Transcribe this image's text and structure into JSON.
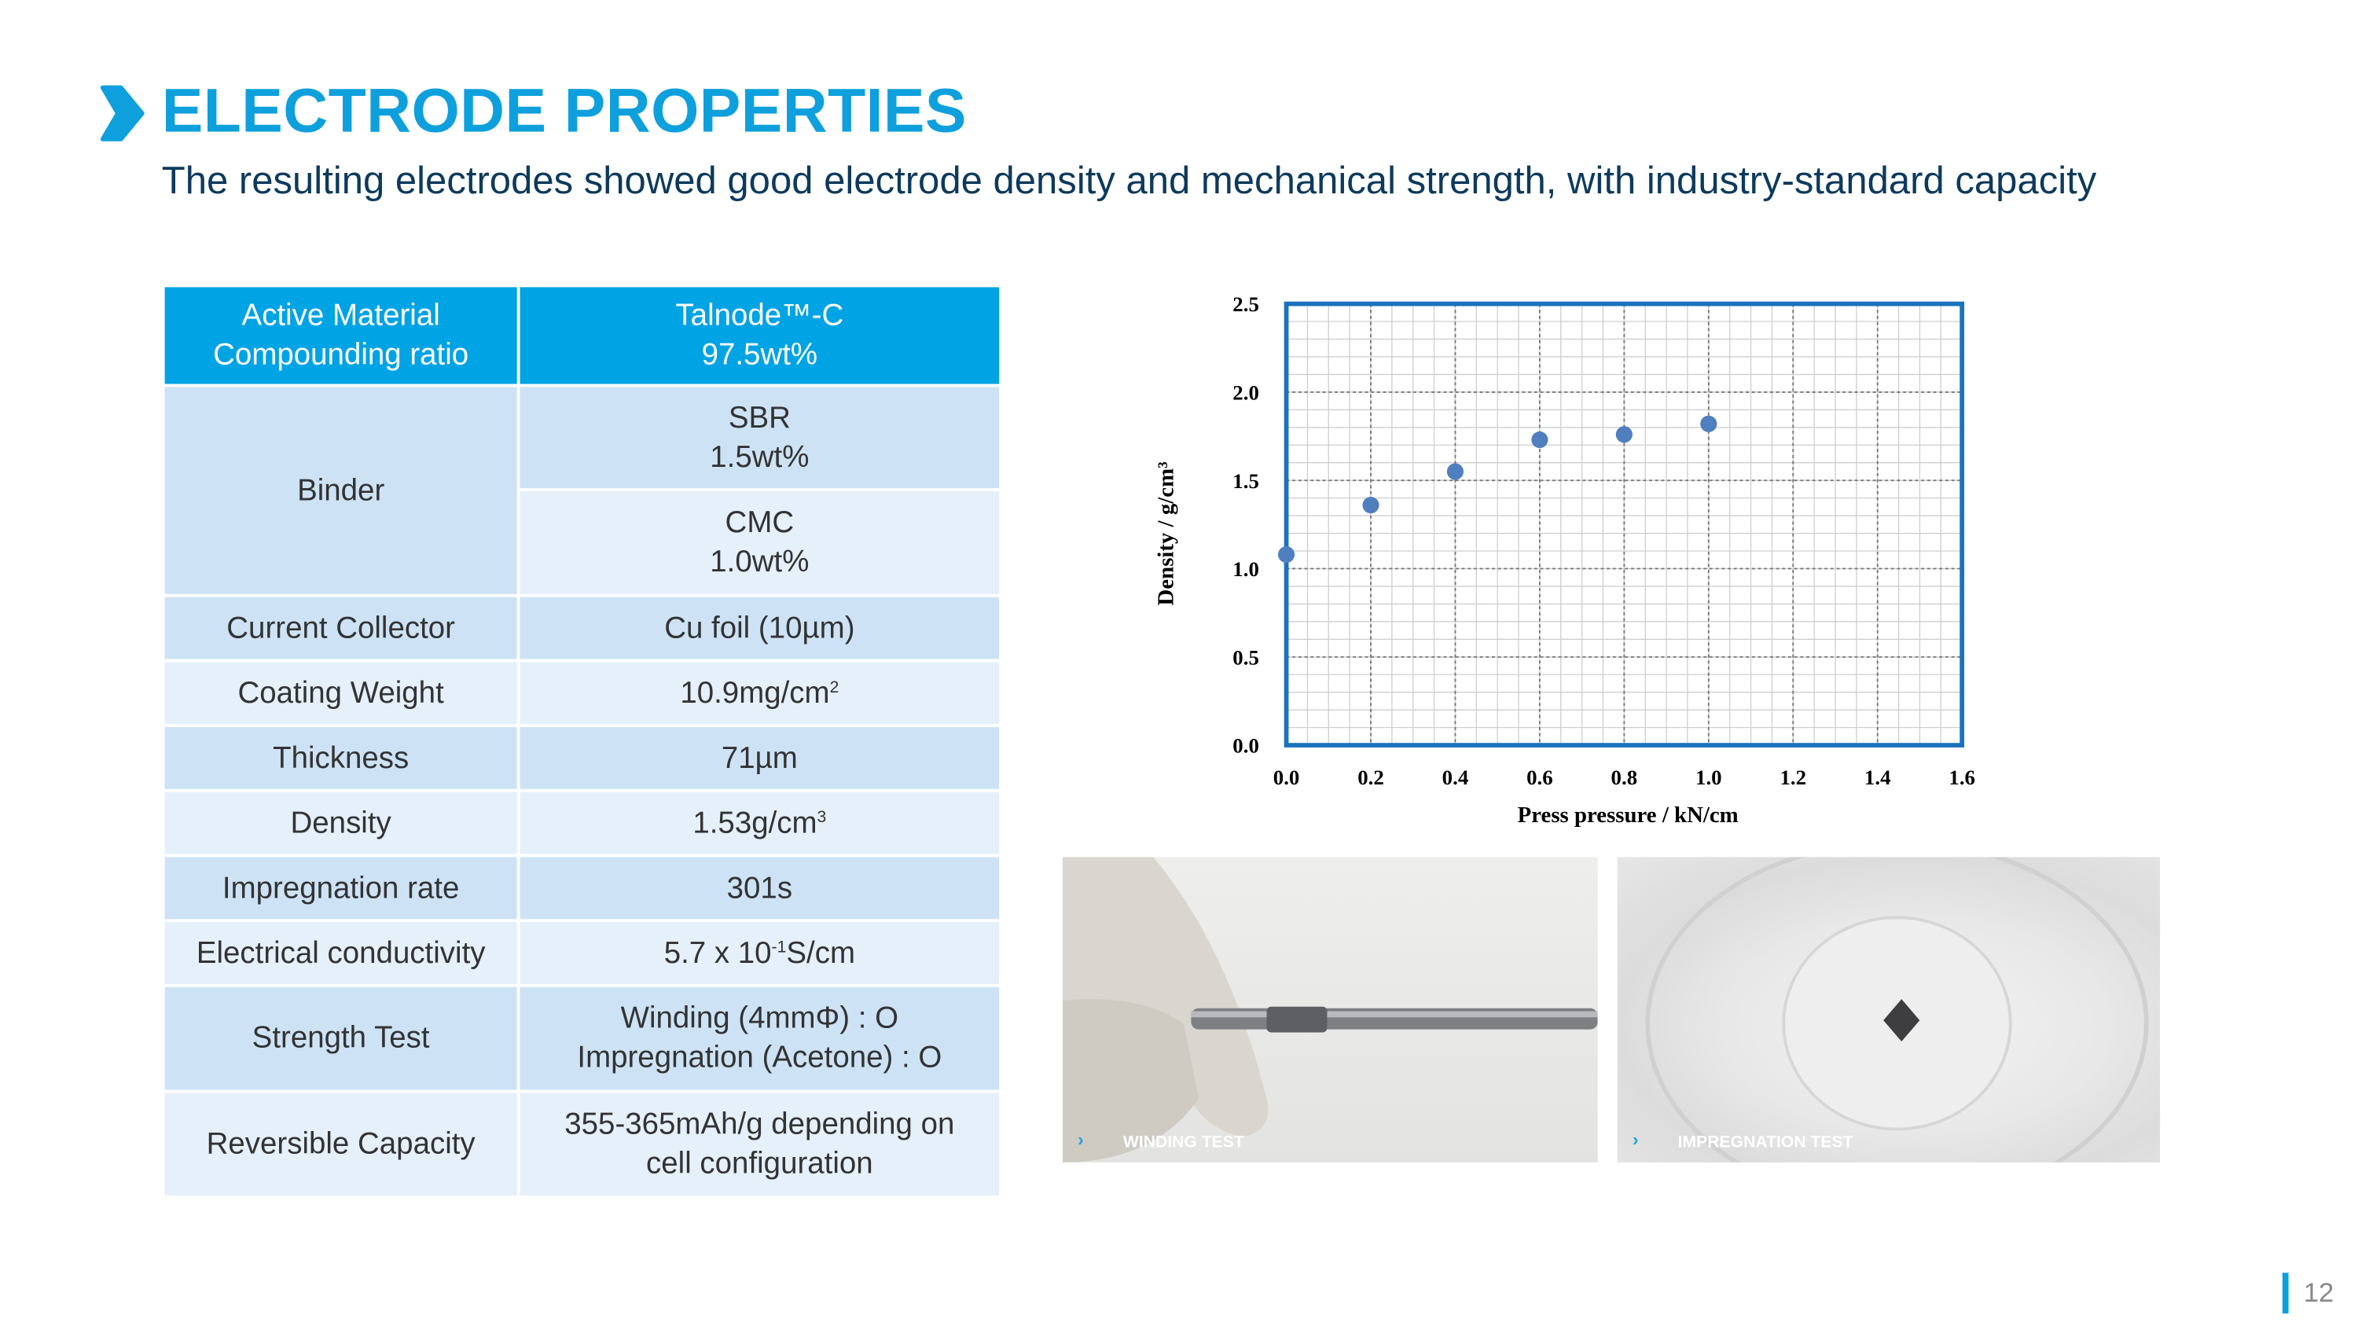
{
  "header": {
    "title": "ELECTRODE PROPERTIES",
    "subtitle": "The resulting electrodes showed good electrode density and mechanical strength, with industry-standard capacity",
    "accent": "#0ea0dc"
  },
  "table": {
    "header": {
      "label_line1": "Active Material",
      "label_line2": "Compounding ratio",
      "value_line1": "Talnode™-C",
      "value_line2": "97.5wt%"
    },
    "binder": {
      "label": "Binder",
      "sbr_line1": "SBR",
      "sbr_line2": "1.5wt%",
      "cmc_line1": "CMC",
      "cmc_line2": "1.0wt%"
    },
    "current_collector": {
      "label": "Current Collector",
      "value": "Cu foil (10µm)"
    },
    "coating_weight": {
      "label": "Coating Weight",
      "value": "10.9mg/cm",
      "sup": "2"
    },
    "thickness": {
      "label": "Thickness",
      "value": "71µm"
    },
    "density": {
      "label": "Density",
      "value": "1.53g/cm",
      "sup": "3"
    },
    "impregnation_rate": {
      "label": "Impregnation rate",
      "value": "301s"
    },
    "conductivity": {
      "label": "Electrical conductivity",
      "value_pre": "5.7 x 10",
      "sup": "-1",
      "value_post": "S/cm"
    },
    "strength": {
      "label": "Strength Test",
      "line1": "Winding (4mmΦ) : O",
      "line2": "Impregnation (Acetone) : O"
    },
    "capacity": {
      "label": "Reversible Capacity",
      "line1": "355-365mAh/g depending on",
      "line2": "cell configuration"
    }
  },
  "chart_data": {
    "type": "scatter",
    "xlabel": "Press pressure / kN/cm",
    "ylabel": "Density / g/cm³",
    "xlim": [
      0,
      1.6
    ],
    "ylim": [
      0,
      2.5
    ],
    "xticks": [
      "0.0",
      "0.2",
      "0.4",
      "0.6",
      "0.8",
      "1.0",
      "1.2",
      "1.4",
      "1.6"
    ],
    "yticks": [
      "0.0",
      "0.5",
      "1.0",
      "1.5",
      "2.0",
      "2.5"
    ],
    "grid": true,
    "x": [
      0.0,
      0.2,
      0.4,
      0.6,
      0.8,
      1.0
    ],
    "y": [
      1.08,
      1.36,
      1.55,
      1.73,
      1.76,
      1.82
    ],
    "marker_color": "#4f7fbf",
    "frame_color": "#1a72bd"
  },
  "photos": {
    "winding": "WINDING TEST",
    "impregnation": "IMPREGNATION TEST"
  },
  "page_number": "12"
}
